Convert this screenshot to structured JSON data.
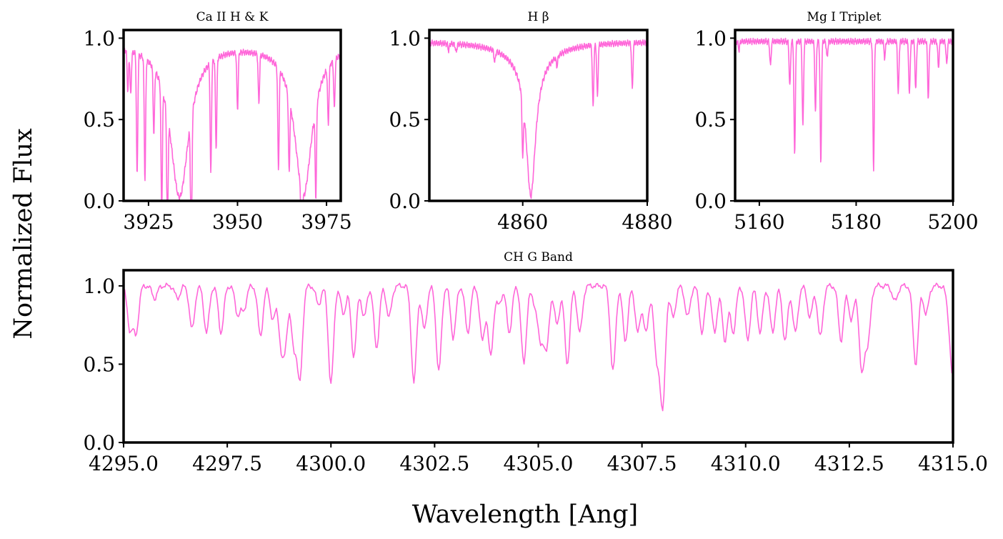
{
  "figure": {
    "xlabel": "Wavelength [Ang]",
    "ylabel": "Normalized Flux",
    "line_color": "#ff66d9"
  },
  "chart_data": [
    {
      "type": "line",
      "title": "Ca II H & K",
      "xlim": [
        3918,
        3979
      ],
      "ylim": [
        0,
        1.05
      ],
      "xticks": [
        3925,
        3950,
        3975
      ],
      "xtick_labels": [
        "3925",
        "3950",
        "3975"
      ],
      "yticks": [
        0,
        0.5,
        1
      ],
      "ytick_labels": [
        "0.0",
        "0.5",
        "1.0"
      ],
      "continuum": 0.97,
      "broad_lines": [
        {
          "center": 3933.7,
          "depth": 0.94,
          "width": 3.2
        },
        {
          "center": 3968.5,
          "depth": 0.93,
          "width": 3.0
        }
      ],
      "narrow_lines": [
        [
          3919.2,
          0.25
        ],
        [
          3920.0,
          0.27
        ],
        [
          3921.8,
          0.75
        ],
        [
          3924.0,
          0.75
        ],
        [
          3926.5,
          0.4
        ],
        [
          3928.7,
          0.77
        ],
        [
          3930.3,
          0.73
        ],
        [
          3937.0,
          0.92
        ],
        [
          3942.5,
          0.68
        ],
        [
          3944.0,
          0.55
        ],
        [
          3950.0,
          0.35
        ],
        [
          3956.0,
          0.3
        ],
        [
          3961.5,
          0.62
        ],
        [
          3964.5,
          0.45
        ],
        [
          3968.0,
          0.4
        ],
        [
          3972.0,
          0.55
        ],
        [
          3975.5,
          0.35
        ],
        [
          3977.2,
          0.3
        ]
      ],
      "series": [
        {
          "name": "spectrum",
          "x": [],
          "y": []
        }
      ]
    },
    {
      "type": "line",
      "title": "H β",
      "xlim": [
        4845,
        4880
      ],
      "ylim": [
        0,
        1.05
      ],
      "xticks": [
        4860,
        4880
      ],
      "xtick_labels": [
        "4860",
        "4880"
      ],
      "yticks": [
        0,
        0.5,
        1
      ],
      "ytick_labels": [
        "0.0",
        "0.5",
        "1.0"
      ],
      "continuum": 0.98,
      "broad_lines": [
        {
          "center": 4861.3,
          "depth": 0.83,
          "width": 0.9
        },
        {
          "center": 4861.3,
          "depth": 0.12,
          "width": 4.0
        }
      ],
      "narrow_lines": [
        [
          4848.1,
          0.04
        ],
        [
          4849.3,
          0.05
        ],
        [
          4855.5,
          0.07
        ],
        [
          4860.0,
          0.33
        ],
        [
          4865.5,
          0.06
        ],
        [
          4871.3,
          0.38
        ],
        [
          4872.0,
          0.32
        ],
        [
          4877.6,
          0.28
        ]
      ],
      "series": [
        {
          "name": "spectrum",
          "x": [],
          "y": []
        }
      ]
    },
    {
      "type": "line",
      "title": "Mg I Triplet",
      "xlim": [
        5155,
        5200
      ],
      "ylim": [
        0,
        1.05
      ],
      "xticks": [
        5160,
        5180,
        5200
      ],
      "xtick_labels": [
        "5160",
        "5180",
        "5200"
      ],
      "yticks": [
        0,
        0.5,
        1
      ],
      "ytick_labels": [
        "0.0",
        "0.5",
        "1.0"
      ],
      "continuum": 0.98,
      "broad_lines": [],
      "narrow_lines": [
        [
          5155.8,
          0.05
        ],
        [
          5162.3,
          0.15
        ],
        [
          5166.3,
          0.28
        ],
        [
          5167.3,
          0.7
        ],
        [
          5169.0,
          0.52
        ],
        [
          5171.6,
          0.43
        ],
        [
          5172.7,
          0.75
        ],
        [
          5174.0,
          0.1
        ],
        [
          5183.6,
          0.78
        ],
        [
          5185.9,
          0.1
        ],
        [
          5188.7,
          0.32
        ],
        [
          5191.0,
          0.33
        ],
        [
          5192.3,
          0.3
        ],
        [
          5194.9,
          0.35
        ],
        [
          5197.0,
          0.16
        ],
        [
          5198.7,
          0.14
        ]
      ],
      "series": [
        {
          "name": "spectrum",
          "x": [],
          "y": []
        }
      ]
    },
    {
      "type": "line",
      "title": "CH G Band",
      "xlim": [
        4295,
        4315
      ],
      "ylim": [
        0,
        1.1
      ],
      "xticks": [
        4295,
        4297.5,
        4300,
        4302.5,
        4305,
        4307.5,
        4310,
        4312.5,
        4315
      ],
      "xtick_labels": [
        "4295.0",
        "4297.5",
        "4300.0",
        "4302.5",
        "4305.0",
        "4307.5",
        "4310.0",
        "4312.5",
        "4315.0"
      ],
      "yticks": [
        0,
        0.5,
        1
      ],
      "ytick_labels": [
        "0.0",
        "0.5",
        "1.0"
      ],
      "continuum": 1.0,
      "broad_lines": [],
      "narrow_lines": [
        [
          4295.15,
          0.27
        ],
        [
          4295.3,
          0.3
        ],
        [
          4295.75,
          0.08
        ],
        [
          4296.3,
          0.08
        ],
        [
          4296.65,
          0.28
        ],
        [
          4297.0,
          0.3
        ],
        [
          4297.35,
          0.3
        ],
        [
          4297.75,
          0.18
        ],
        [
          4297.9,
          0.15
        ],
        [
          4298.3,
          0.32
        ],
        [
          4298.6,
          0.22
        ],
        [
          4298.8,
          0.35
        ],
        [
          4298.9,
          0.3
        ],
        [
          4299.1,
          0.37
        ],
        [
          4299.25,
          0.6
        ],
        [
          4299.7,
          0.12
        ],
        [
          4300.0,
          0.63
        ],
        [
          4300.3,
          0.18
        ],
        [
          4300.55,
          0.45
        ],
        [
          4300.8,
          0.2
        ],
        [
          4301.1,
          0.4
        ],
        [
          4301.4,
          0.2
        ],
        [
          4302.0,
          0.62
        ],
        [
          4302.25,
          0.28
        ],
        [
          4302.6,
          0.55
        ],
        [
          4302.95,
          0.33
        ],
        [
          4303.3,
          0.3
        ],
        [
          4303.65,
          0.35
        ],
        [
          4303.85,
          0.45
        ],
        [
          4304.05,
          0.12
        ],
        [
          4304.3,
          0.3
        ],
        [
          4304.65,
          0.5
        ],
        [
          4304.9,
          0.1
        ],
        [
          4305.05,
          0.35
        ],
        [
          4305.2,
          0.4
        ],
        [
          4305.45,
          0.25
        ],
        [
          4305.7,
          0.5
        ],
        [
          4306.0,
          0.3
        ],
        [
          4306.8,
          0.55
        ],
        [
          4307.1,
          0.35
        ],
        [
          4307.4,
          0.3
        ],
        [
          4307.6,
          0.3
        ],
        [
          4307.85,
          0.45
        ],
        [
          4308.0,
          0.78
        ],
        [
          4308.25,
          0.2
        ],
        [
          4308.6,
          0.2
        ],
        [
          4308.95,
          0.3
        ],
        [
          4309.25,
          0.3
        ],
        [
          4309.5,
          0.35
        ],
        [
          4309.7,
          0.3
        ],
        [
          4310.05,
          0.35
        ],
        [
          4310.35,
          0.3
        ],
        [
          4310.65,
          0.3
        ],
        [
          4310.95,
          0.35
        ],
        [
          4311.2,
          0.3
        ],
        [
          4311.55,
          0.2
        ],
        [
          4311.8,
          0.33
        ],
        [
          4312.3,
          0.35
        ],
        [
          4312.55,
          0.22
        ],
        [
          4312.8,
          0.55
        ],
        [
          4312.95,
          0.35
        ],
        [
          4313.6,
          0.1
        ],
        [
          4314.1,
          0.5
        ],
        [
          4314.35,
          0.18
        ],
        [
          4314.9,
          0.12
        ],
        [
          4315.0,
          0.55
        ]
      ],
      "series": [
        {
          "name": "spectrum",
          "x": [],
          "y": []
        }
      ]
    }
  ]
}
